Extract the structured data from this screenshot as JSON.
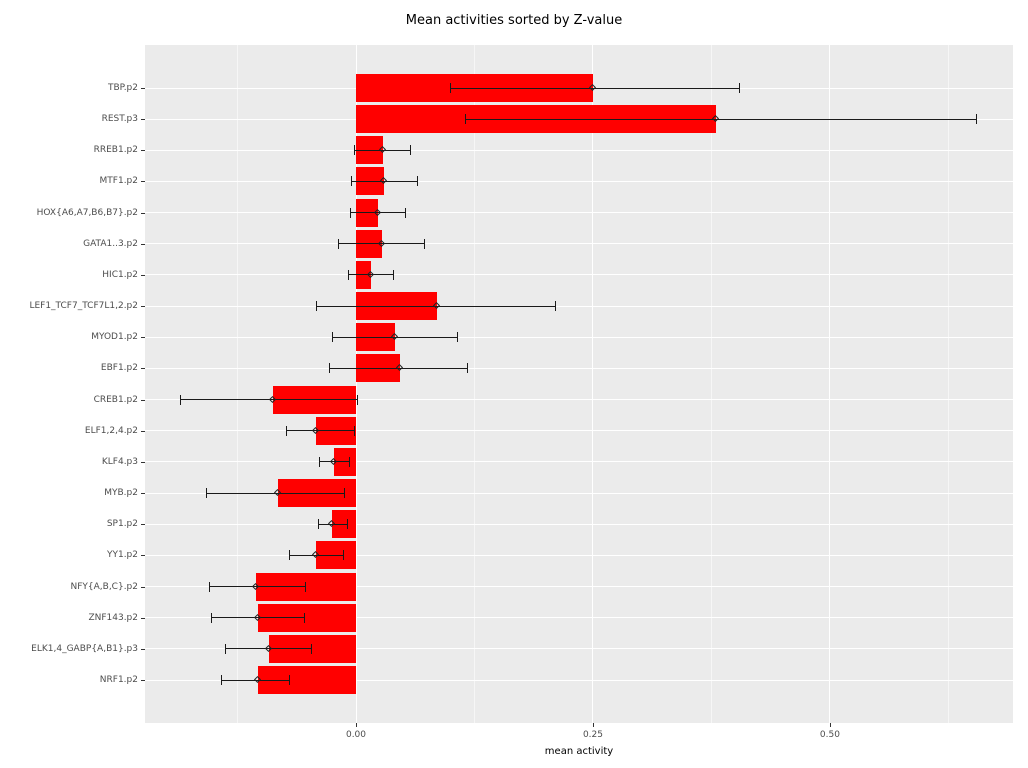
{
  "chart": {
    "title": "Mean activities sorted by Z-value",
    "xlabel": "mean activity"
  },
  "chart_data": {
    "type": "bar",
    "orientation": "horizontal",
    "title": "Mean activities sorted by Z-value",
    "xlabel": "mean activity",
    "ylabel": "",
    "legend": "none",
    "grid": "on",
    "bar_color": "#FF0000",
    "panel_bg": "#EBEBEB",
    "xlim": [
      -0.2226,
      0.6931
    ],
    "x_ticks": [
      0.0,
      0.25,
      0.5
    ],
    "x_tick_labels": [
      "0.00",
      "0.25",
      "0.50"
    ],
    "x_minor_ticks": [
      -0.125,
      0.125,
      0.375,
      0.625
    ],
    "categories": [
      "TBP.p2",
      "REST.p3",
      "RREB1.p2",
      "MTF1.p2",
      "HOX{A6,A7,B6,B7}.p2",
      "GATA1..3.p2",
      "HIC1.p2",
      "LEF1_TCF7_TCF7L1,2.p2",
      "MYOD1.p2",
      "EBF1.p2",
      "CREB1.p2",
      "ELF1,2,4.p2",
      "KLF4.p3",
      "MYB.p2",
      "SP1.p2",
      "YY1.p2",
      "NFY{A,B,C}.p2",
      "ZNF143.p2",
      "ELK1,4_GABP{A,B1}.p3",
      "NRF1.p2"
    ],
    "values": [
      0.25,
      0.38,
      0.028,
      0.03,
      0.023,
      0.027,
      0.016,
      0.085,
      0.041,
      0.046,
      -0.088,
      -0.042,
      -0.023,
      -0.082,
      -0.025,
      -0.042,
      -0.105,
      -0.103,
      -0.092,
      -0.103
    ],
    "error_low": [
      0.1,
      0.115,
      -0.002,
      -0.005,
      -0.006,
      -0.018,
      -0.008,
      -0.042,
      -0.025,
      -0.028,
      -0.185,
      -0.073,
      -0.038,
      -0.158,
      -0.04,
      -0.07,
      -0.155,
      -0.152,
      -0.138,
      -0.142
    ],
    "error_high": [
      0.405,
      0.655,
      0.058,
      0.065,
      0.052,
      0.072,
      0.04,
      0.21,
      0.107,
      0.118,
      0.002,
      -0.002,
      -0.007,
      -0.012,
      -0.009,
      -0.013,
      -0.053,
      -0.054,
      -0.047,
      -0.07
    ]
  }
}
